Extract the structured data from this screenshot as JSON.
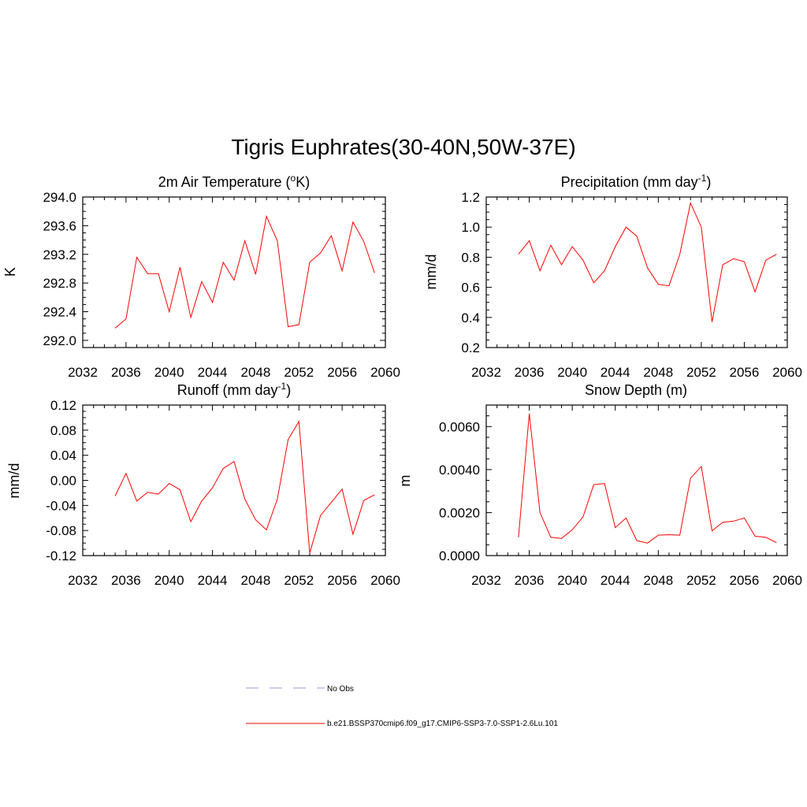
{
  "figure": {
    "title": "Tigris Euphrates(30-40N,50W-37E)",
    "colors": {
      "model_line": "#ff0000",
      "obs_line": "#9999dd",
      "axis": "#000000"
    }
  },
  "legend": {
    "entries": [
      {
        "label": "No Obs",
        "style": "dashed",
        "color": "#9999dd"
      },
      {
        "label": "b.e21.BSSP370cmip6.f09_g17.CMIP6-SSP3-7.0-SSP1-2.6Lu.101",
        "style": "solid",
        "color": "#ff0000"
      }
    ]
  },
  "chart_data": [
    {
      "type": "line",
      "title": "2m Air Temperature (",
      "title_sup": "o",
      "title_after": "K)",
      "ylabel": "K",
      "xlim": [
        2032,
        2060
      ],
      "ylim": [
        291.9,
        294.0
      ],
      "xticks": [
        2032,
        2036,
        2040,
        2044,
        2048,
        2052,
        2056,
        2060
      ],
      "yticks": [
        292.0,
        292.4,
        292.8,
        293.2,
        293.6,
        294.0
      ],
      "ytick_labels": [
        "292.0",
        "292.4",
        "292.8",
        "293.2",
        "293.6",
        "294.0"
      ],
      "series": [
        {
          "x": [
            2035,
            2036,
            2037,
            2038,
            2039,
            2040,
            2041,
            2042,
            2043,
            2044,
            2045,
            2046,
            2047,
            2048,
            2049,
            2050,
            2051,
            2052,
            2053,
            2054,
            2055,
            2056,
            2057,
            2058,
            2059
          ],
          "values": [
            292.17,
            292.3,
            293.16,
            292.93,
            292.93,
            292.4,
            293.02,
            292.32,
            292.82,
            292.53,
            293.09,
            292.84,
            293.39,
            292.92,
            293.73,
            293.39,
            292.19,
            292.22,
            293.09,
            293.22,
            293.46,
            292.97,
            293.65,
            293.38,
            292.94
          ]
        }
      ]
    },
    {
      "type": "line",
      "title": "Precipitation (mm day",
      "title_sup": "-1",
      "title_after": ")",
      "ylabel": "mm/d",
      "xlim": [
        2032,
        2060
      ],
      "ylim": [
        0.2,
        1.2
      ],
      "xticks": [
        2032,
        2036,
        2040,
        2044,
        2048,
        2052,
        2056,
        2060
      ],
      "yticks": [
        0.2,
        0.4,
        0.6,
        0.8,
        1.0,
        1.2
      ],
      "ytick_labels": [
        "0.2",
        "0.4",
        "0.6",
        "0.8",
        "1.0",
        "1.2"
      ],
      "series": [
        {
          "x": [
            2035,
            2036,
            2037,
            2038,
            2039,
            2040,
            2041,
            2042,
            2043,
            2044,
            2045,
            2046,
            2047,
            2048,
            2049,
            2050,
            2051,
            2052,
            2053,
            2054,
            2055,
            2056,
            2057,
            2058,
            2059
          ],
          "values": [
            0.82,
            0.91,
            0.71,
            0.88,
            0.75,
            0.87,
            0.78,
            0.63,
            0.71,
            0.87,
            1.0,
            0.94,
            0.73,
            0.62,
            0.61,
            0.82,
            1.16,
            1.0,
            0.37,
            0.75,
            0.79,
            0.77,
            0.57,
            0.78,
            0.82
          ]
        }
      ]
    },
    {
      "type": "line",
      "title": "Runoff (mm day",
      "title_sup": "-1",
      "title_after": ")",
      "ylabel": "mm/d",
      "xlim": [
        2032,
        2060
      ],
      "ylim": [
        -0.12,
        0.12
      ],
      "xticks": [
        2032,
        2036,
        2040,
        2044,
        2048,
        2052,
        2056,
        2060
      ],
      "yticks": [
        -0.12,
        -0.08,
        -0.04,
        0.0,
        0.04,
        0.08,
        0.12
      ],
      "ytick_labels": [
        "-0.12",
        "-0.08",
        "-0.04",
        "0.00",
        "0.04",
        "0.08",
        "0.12"
      ],
      "series": [
        {
          "x": [
            2035,
            2036,
            2037,
            2038,
            2039,
            2040,
            2041,
            2042,
            2043,
            2044,
            2045,
            2046,
            2047,
            2048,
            2049,
            2050,
            2051,
            2052,
            2053,
            2054,
            2055,
            2056,
            2057,
            2058,
            2059
          ],
          "values": [
            -0.025,
            0.011,
            -0.033,
            -0.019,
            -0.022,
            -0.005,
            -0.015,
            -0.066,
            -0.033,
            -0.012,
            0.019,
            0.03,
            -0.03,
            -0.063,
            -0.079,
            -0.03,
            0.065,
            0.094,
            -0.116,
            -0.056,
            -0.035,
            -0.014,
            -0.086,
            -0.032,
            -0.023
          ]
        }
      ]
    },
    {
      "type": "line",
      "title": "Snow Depth (m)",
      "title_sup": "",
      "title_after": "",
      "ylabel": "m",
      "xlim": [
        2032,
        2060
      ],
      "ylim": [
        0.0,
        0.007
      ],
      "xticks": [
        2032,
        2036,
        2040,
        2044,
        2048,
        2052,
        2056,
        2060
      ],
      "yticks": [
        0.0,
        0.002,
        0.004,
        0.006
      ],
      "ytick_labels": [
        "0.0000",
        "0.0020",
        "0.0040",
        "0.0060"
      ],
      "series": [
        {
          "x": [
            2035,
            2036,
            2037,
            2038,
            2039,
            2040,
            2041,
            2042,
            2043,
            2044,
            2045,
            2046,
            2047,
            2048,
            2049,
            2050,
            2051,
            2052,
            2053,
            2054,
            2055,
            2056,
            2057,
            2058,
            2059
          ],
          "values": [
            0.00085,
            0.0066,
            0.002,
            0.00085,
            0.0008,
            0.0012,
            0.0018,
            0.0033,
            0.00335,
            0.0013,
            0.00175,
            0.0007,
            0.00058,
            0.00095,
            0.00097,
            0.00095,
            0.0036,
            0.00415,
            0.00115,
            0.00155,
            0.0016,
            0.00175,
            0.0009,
            0.00085,
            0.0006
          ]
        }
      ]
    }
  ]
}
